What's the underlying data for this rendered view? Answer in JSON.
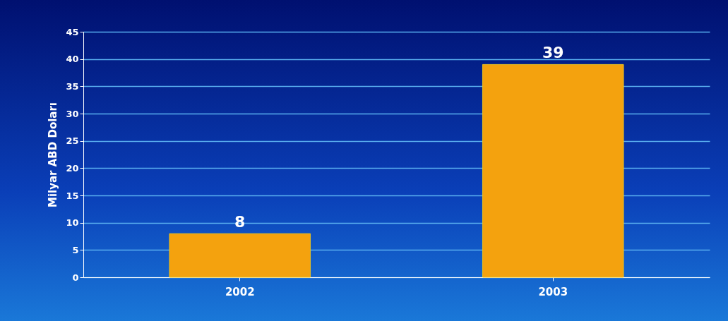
{
  "chart_data": {
    "type": "bar",
    "ylabel": "Milyar ABD Doları",
    "categories": [
      "2002",
      "2003"
    ],
    "values": [
      8,
      39
    ],
    "color": "#f4a20e",
    "ylim": [
      0,
      45
    ],
    "yticks": [
      0,
      5,
      10,
      15,
      20,
      25,
      30,
      35,
      40,
      45
    ],
    "grid": "y",
    "data_labels": true
  }
}
